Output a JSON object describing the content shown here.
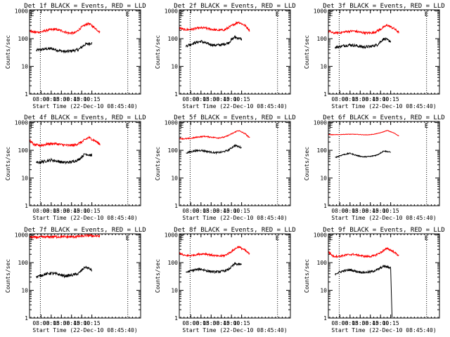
{
  "colors": {
    "events": "#000000",
    "lld": "#ff0000",
    "axis": "#000000",
    "background": "#ffffff"
  },
  "chart_data": [
    {
      "type": "line",
      "title": "Det 1f BLACK = Events, RED = LLD",
      "xlabel": "Start Time (22-Dec-10 08:45:40)",
      "ylabel": "Counts/sec",
      "ylog": true,
      "ylim": [
        1,
        1100
      ],
      "yticks": [
        {
          "v": 1,
          "label": "1"
        },
        {
          "v": 10,
          "label": "10"
        },
        {
          "v": 100,
          "label": "100"
        },
        {
          "v": 1000,
          "label": "1000"
        }
      ],
      "xlim": [
        "07:43",
        "10:27"
      ],
      "xticks": [
        "08:00",
        "08:15",
        "08:30",
        "08:45",
        "10:00",
        "10:15"
      ],
      "xtick_positions": [
        "08:00",
        "08:15",
        "08:30",
        "08:45",
        "09:00",
        "09:15"
      ],
      "vlines": [
        "07:59",
        "10:08"
      ],
      "markers": [
        "E",
        "E"
      ],
      "marker_positions": [
        "07:44",
        "10:05"
      ],
      "series": [
        {
          "color": "#000000",
          "x": [
            "07:53",
            "08:05",
            "08:15",
            "08:25",
            "08:35",
            "08:45",
            "08:55",
            "09:05",
            "09:15"
          ],
          "y": [
            38,
            42,
            44,
            38,
            34,
            36,
            40,
            62,
            70
          ],
          "noise": 0.1
        },
        {
          "color": "#ff0000",
          "x": [
            "07:43",
            "07:50",
            "08:00",
            "08:10",
            "08:20",
            "08:30",
            "08:40",
            "08:50",
            "09:00",
            "09:10",
            "09:20",
            "09:27"
          ],
          "y": [
            190,
            170,
            175,
            205,
            220,
            195,
            160,
            160,
            260,
            360,
            240,
            170
          ],
          "noise": 0.08
        }
      ]
    },
    {
      "type": "line",
      "title": "Det 2f BLACK = Events, RED = LLD",
      "xlabel": "Start Time (22-Dec-10 08:45:40)",
      "ylabel": "Counts/sec",
      "ylog": true,
      "ylim": [
        1,
        1100
      ],
      "yticks": [
        {
          "v": 1,
          "label": "1"
        },
        {
          "v": 10,
          "label": "10"
        },
        {
          "v": 100,
          "label": "100"
        },
        {
          "v": 1000,
          "label": "1000"
        }
      ],
      "xlim": [
        "07:43",
        "10:27"
      ],
      "xticks": [
        "08:00",
        "08:15",
        "08:30",
        "08:45",
        "10:00",
        "10:15"
      ],
      "xtick_positions": [
        "08:00",
        "08:15",
        "08:30",
        "08:45",
        "09:00",
        "09:15"
      ],
      "vlines": [
        "07:59",
        "10:08"
      ],
      "markers": [
        "E",
        "E"
      ],
      "marker_positions": [
        "07:44",
        "10:05"
      ],
      "series": [
        {
          "color": "#000000",
          "x": [
            "07:53",
            "08:05",
            "08:15",
            "08:25",
            "08:35",
            "08:45",
            "08:55",
            "09:05",
            "09:15"
          ],
          "y": [
            55,
            70,
            80,
            65,
            58,
            60,
            70,
            115,
            95
          ],
          "noise": 0.1
        },
        {
          "color": "#ff0000",
          "x": [
            "07:43",
            "07:50",
            "08:00",
            "08:10",
            "08:20",
            "08:30",
            "08:40",
            "08:50",
            "09:00",
            "09:10",
            "09:20",
            "09:27"
          ],
          "y": [
            250,
            210,
            215,
            240,
            245,
            220,
            200,
            210,
            290,
            400,
            300,
            200
          ],
          "noise": 0.08
        }
      ]
    },
    {
      "type": "line",
      "title": "Det 3f BLACK = Events, RED = LLD",
      "xlabel": "Start Time (22-Dec-10 08:45:40)",
      "ylabel": "Counts/sec",
      "ylog": true,
      "ylim": [
        1,
        1100
      ],
      "yticks": [
        {
          "v": 1,
          "label": "1"
        },
        {
          "v": 10,
          "label": "10"
        },
        {
          "v": 100,
          "label": "100"
        },
        {
          "v": 1000,
          "label": "1000"
        }
      ],
      "xlim": [
        "07:43",
        "10:27"
      ],
      "xticks": [
        "08:00",
        "08:15",
        "08:30",
        "08:45",
        "10:00",
        "10:15"
      ],
      "xtick_positions": [
        "08:00",
        "08:15",
        "08:30",
        "08:45",
        "09:00",
        "09:15"
      ],
      "vlines": [
        "07:59",
        "10:08"
      ],
      "markers": [
        "E",
        "E"
      ],
      "marker_positions": [
        "07:44",
        "10:05"
      ],
      "series": [
        {
          "color": "#000000",
          "x": [
            "07:53",
            "08:05",
            "08:15",
            "08:25",
            "08:35",
            "08:45",
            "08:55",
            "09:05",
            "09:15"
          ],
          "y": [
            48,
            55,
            60,
            55,
            50,
            52,
            60,
            100,
            80
          ],
          "noise": 0.1
        },
        {
          "color": "#ff0000",
          "x": [
            "07:43",
            "07:50",
            "08:00",
            "08:10",
            "08:20",
            "08:30",
            "08:40",
            "08:50",
            "09:00",
            "09:10",
            "09:20",
            "09:27"
          ],
          "y": [
            190,
            160,
            165,
            180,
            190,
            170,
            160,
            165,
            220,
            310,
            230,
            170
          ],
          "noise": 0.08
        }
      ]
    },
    {
      "type": "line",
      "title": "Det 4f BLACK = Events, RED = LLD",
      "xlabel": "Start Time (22-Dec-10 08:45:40)",
      "ylabel": "Counts/sec",
      "ylog": true,
      "ylim": [
        1,
        1100
      ],
      "yticks": [
        {
          "v": 1,
          "label": "1"
        },
        {
          "v": 10,
          "label": "10"
        },
        {
          "v": 100,
          "label": "100"
        },
        {
          "v": 1000,
          "label": "1000"
        }
      ],
      "xlim": [
        "07:43",
        "10:27"
      ],
      "xticks": [
        "08:00",
        "08:15",
        "08:30",
        "08:45",
        "10:00",
        "10:15"
      ],
      "xtick_positions": [
        "08:00",
        "08:15",
        "08:30",
        "08:45",
        "09:00",
        "09:15"
      ],
      "vlines": [
        "07:59",
        "10:08"
      ],
      "markers": [
        "E",
        "E"
      ],
      "marker_positions": [
        "07:44",
        "10:05"
      ],
      "series": [
        {
          "color": "#000000",
          "x": [
            "07:53",
            "08:05",
            "08:15",
            "08:25",
            "08:35",
            "08:45",
            "08:55",
            "09:05",
            "09:15"
          ],
          "y": [
            35,
            40,
            45,
            40,
            36,
            38,
            45,
            75,
            65
          ],
          "noise": 0.1
        },
        {
          "color": "#ff0000",
          "x": [
            "07:43",
            "07:50",
            "08:00",
            "08:10",
            "08:20",
            "08:30",
            "08:40",
            "08:50",
            "09:00",
            "09:10",
            "09:20",
            "09:27"
          ],
          "y": [
            230,
            155,
            150,
            170,
            175,
            160,
            150,
            155,
            200,
            290,
            220,
            165
          ],
          "noise": 0.09
        }
      ]
    },
    {
      "type": "line",
      "title": "Det 5f BLACK = Events, RED = LLD",
      "xlabel": "Start Time (22-Dec-10 08:45:40)",
      "ylabel": "Counts/sec",
      "ylog": true,
      "ylim": [
        1,
        1100
      ],
      "yticks": [
        {
          "v": 1,
          "label": "1"
        },
        {
          "v": 10,
          "label": "10"
        },
        {
          "v": 100,
          "label": "100"
        },
        {
          "v": 1000,
          "label": "1000"
        }
      ],
      "xlim": [
        "07:43",
        "10:27"
      ],
      "xticks": [
        "08:00",
        "08:15",
        "08:30",
        "08:45",
        "10:00",
        "10:15"
      ],
      "xtick_positions": [
        "08:00",
        "08:15",
        "08:30",
        "08:45",
        "09:00",
        "09:15"
      ],
      "vlines": [
        "07:59",
        "10:08"
      ],
      "markers": [
        "E",
        "E"
      ],
      "marker_positions": [
        "07:44",
        "10:05"
      ],
      "series": [
        {
          "color": "#000000",
          "x": [
            "07:53",
            "08:05",
            "08:15",
            "08:25",
            "08:35",
            "08:45",
            "08:55",
            "09:05",
            "09:15"
          ],
          "y": [
            80,
            95,
            100,
            90,
            82,
            85,
            100,
            150,
            125
          ],
          "noise": 0.06
        },
        {
          "color": "#ff0000",
          "x": [
            "07:43",
            "07:50",
            "08:00",
            "08:10",
            "08:20",
            "08:30",
            "08:40",
            "08:50",
            "09:00",
            "09:10",
            "09:20",
            "09:27"
          ],
          "y": [
            270,
            260,
            270,
            300,
            320,
            300,
            280,
            300,
            390,
            520,
            400,
            280
          ],
          "noise": 0.04
        }
      ]
    },
    {
      "type": "line",
      "title": "Det 6f BLACK = Events, RED = LLD",
      "xlabel": "Start Time (22-Dec-10 08:45:40)",
      "ylabel": "Counts/sec",
      "ylog": true,
      "ylim": [
        1,
        1100
      ],
      "yticks": [
        {
          "v": 1,
          "label": "1"
        },
        {
          "v": 10,
          "label": "10"
        },
        {
          "v": 100,
          "label": "100"
        },
        {
          "v": 1000,
          "label": "1000"
        }
      ],
      "xlim": [
        "07:43",
        "10:27"
      ],
      "xticks": [
        "08:00",
        "08:15",
        "08:30",
        "08:45",
        "10:00",
        "10:15"
      ],
      "xtick_positions": [
        "08:00",
        "08:15",
        "08:30",
        "08:45",
        "09:00",
        "09:15"
      ],
      "vlines": [
        "07:59",
        "10:08"
      ],
      "markers": [
        "E",
        "E"
      ],
      "marker_positions": [
        "07:44",
        "10:05"
      ],
      "series": [
        {
          "color": "#000000",
          "x": [
            "07:53",
            "08:05",
            "08:15",
            "08:25",
            "08:35",
            "08:45",
            "08:55",
            "09:05",
            "09:15"
          ],
          "y": [
            55,
            70,
            78,
            65,
            58,
            60,
            68,
            95,
            85
          ],
          "noise": 0.04
        },
        {
          "color": "#ff0000",
          "x": [
            "07:43",
            "07:50",
            "08:00",
            "08:10",
            "08:20",
            "08:30",
            "08:40",
            "08:50",
            "09:00",
            "09:10",
            "09:20",
            "09:27"
          ],
          "y": [
            370,
            365,
            370,
            380,
            380,
            370,
            360,
            380,
            430,
            520,
            420,
            330
          ],
          "noise": 0.015
        }
      ]
    },
    {
      "type": "line",
      "title": "Det 7f BLACK = Events, RED = LLD",
      "xlabel": "Start Time (22-Dec-10 08:45:40)",
      "ylabel": "Counts/sec",
      "ylog": true,
      "ylim": [
        1,
        1100
      ],
      "yticks": [
        {
          "v": 1,
          "label": "1"
        },
        {
          "v": 10,
          "label": "10"
        },
        {
          "v": 100,
          "label": "100"
        },
        {
          "v": 1000,
          "label": "1000"
        }
      ],
      "xlim": [
        "07:43",
        "10:27"
      ],
      "xticks": [
        "08:00",
        "08:15",
        "08:30",
        "08:45",
        "10:00",
        "10:15"
      ],
      "xtick_positions": [
        "08:00",
        "08:15",
        "08:30",
        "08:45",
        "09:00",
        "09:15"
      ],
      "vlines": [
        "07:59",
        "10:08"
      ],
      "markers": [
        "E",
        "E"
      ],
      "marker_positions": [
        "07:44",
        "10:05"
      ],
      "series": [
        {
          "color": "#000000",
          "x": [
            "07:53",
            "08:05",
            "08:15",
            "08:25",
            "08:35",
            "08:45",
            "08:55",
            "09:05",
            "09:15"
          ],
          "y": [
            30,
            38,
            42,
            38,
            33,
            35,
            40,
            70,
            55
          ],
          "noise": 0.1
        },
        {
          "color": "#ff0000",
          "x": [
            "07:43",
            "07:50",
            "08:00",
            "08:10",
            "08:20",
            "08:30",
            "08:40",
            "08:50",
            "09:00",
            "09:10",
            "09:20",
            "09:27"
          ],
          "y": [
            850,
            820,
            830,
            850,
            870,
            860,
            850,
            870,
            900,
            950,
            920,
            900
          ],
          "noise": 0.09
        }
      ]
    },
    {
      "type": "line",
      "title": "Det 8f BLACK = Events, RED = LLD",
      "xlabel": "Start Time (22-Dec-10 08:45:40)",
      "ylabel": "Counts/sec",
      "ylog": true,
      "ylim": [
        1,
        1100
      ],
      "yticks": [
        {
          "v": 1,
          "label": "1"
        },
        {
          "v": 10,
          "label": "10"
        },
        {
          "v": 100,
          "label": "100"
        },
        {
          "v": 1000,
          "label": "1000"
        }
      ],
      "xlim": [
        "07:43",
        "10:27"
      ],
      "xticks": [
        "08:00",
        "08:15",
        "08:30",
        "08:45",
        "10:00",
        "10:15"
      ],
      "xtick_positions": [
        "08:00",
        "08:15",
        "08:30",
        "08:45",
        "09:00",
        "09:15"
      ],
      "vlines": [
        "07:59",
        "10:08"
      ],
      "markers": [
        "E",
        "E"
      ],
      "marker_positions": [
        "07:44",
        "10:05"
      ],
      "series": [
        {
          "color": "#000000",
          "x": [
            "07:53",
            "08:05",
            "08:15",
            "08:25",
            "08:35",
            "08:45",
            "08:55",
            "09:05",
            "09:15"
          ],
          "y": [
            45,
            55,
            58,
            50,
            46,
            48,
            55,
            90,
            85
          ],
          "noise": 0.08
        },
        {
          "color": "#ff0000",
          "x": [
            "07:43",
            "07:50",
            "08:00",
            "08:10",
            "08:20",
            "08:30",
            "08:40",
            "08:50",
            "09:00",
            "09:10",
            "09:20",
            "09:27"
          ],
          "y": [
            230,
            180,
            180,
            200,
            210,
            190,
            170,
            180,
            250,
            380,
            280,
            200
          ],
          "noise": 0.07
        }
      ]
    },
    {
      "type": "line",
      "title": "Det 9f BLACK = Events, RED = LLD",
      "xlabel": "Start Time (22-Dec-10 08:45:40)",
      "ylabel": "Counts/sec",
      "ylog": true,
      "ylim": [
        1,
        1100
      ],
      "yticks": [
        {
          "v": 1,
          "label": "1"
        },
        {
          "v": 10,
          "label": "10"
        },
        {
          "v": 100,
          "label": "100"
        },
        {
          "v": 1000,
          "label": "1000"
        }
      ],
      "xlim": [
        "07:43",
        "10:27"
      ],
      "xticks": [
        "08:00",
        "08:15",
        "08:30",
        "08:45",
        "10:00",
        "10:15"
      ],
      "xtick_positions": [
        "08:00",
        "08:15",
        "08:30",
        "08:45",
        "09:00",
        "09:15"
      ],
      "vlines": [
        "07:59",
        "10:08"
      ],
      "markers": [
        "E",
        "E"
      ],
      "marker_positions": [
        "07:44",
        "10:05"
      ],
      "series": [
        {
          "color": "#000000",
          "x": [
            "07:53",
            "08:05",
            "08:15",
            "08:25",
            "08:35",
            "08:45",
            "08:55",
            "09:05",
            "09:15",
            "09:17"
          ],
          "y": [
            40,
            50,
            55,
            48,
            44,
            46,
            55,
            75,
            65,
            1
          ],
          "noise": 0.08
        },
        {
          "color": "#ff0000",
          "x": [
            "07:43",
            "07:50",
            "08:00",
            "08:10",
            "08:20",
            "08:30",
            "08:40",
            "08:50",
            "09:00",
            "09:10",
            "09:20",
            "09:27"
          ],
          "y": [
            250,
            170,
            170,
            190,
            200,
            180,
            165,
            175,
            230,
            330,
            240,
            180
          ],
          "noise": 0.07
        }
      ]
    }
  ]
}
